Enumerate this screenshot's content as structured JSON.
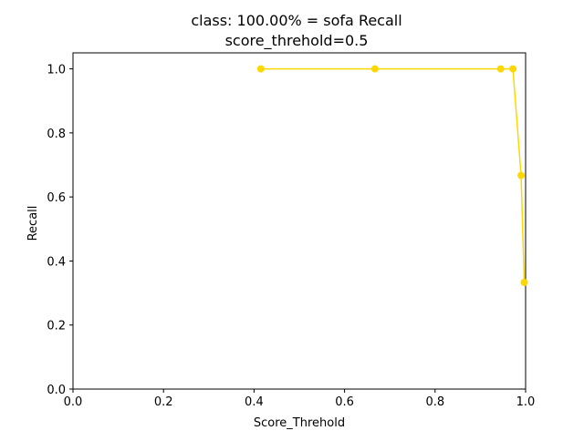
{
  "chart_data": {
    "type": "line",
    "title": "class: 100.00% = sofa Recall",
    "subtitle": "score_threhold=0.5",
    "xlabel": "Score_Threhold",
    "ylabel": "Recall",
    "xlim": [
      0.0,
      1.0
    ],
    "ylim": [
      0.0,
      1.05
    ],
    "xticks": [
      "0.0",
      "0.2",
      "0.4",
      "0.6",
      "0.8",
      "1.0"
    ],
    "yticks": [
      "0.0",
      "0.2",
      "0.4",
      "0.6",
      "0.8",
      "1.0"
    ],
    "grid": false,
    "series": [
      {
        "color": "#FFD700",
        "marker": "circle",
        "points": [
          {
            "x": 0.415,
            "y": 1.0
          },
          {
            "x": 0.667,
            "y": 1.0
          },
          {
            "x": 0.945,
            "y": 1.0
          },
          {
            "x": 0.972,
            "y": 1.0
          },
          {
            "x": 0.99,
            "y": 0.667
          },
          {
            "x": 0.997,
            "y": 0.333
          }
        ]
      }
    ]
  }
}
